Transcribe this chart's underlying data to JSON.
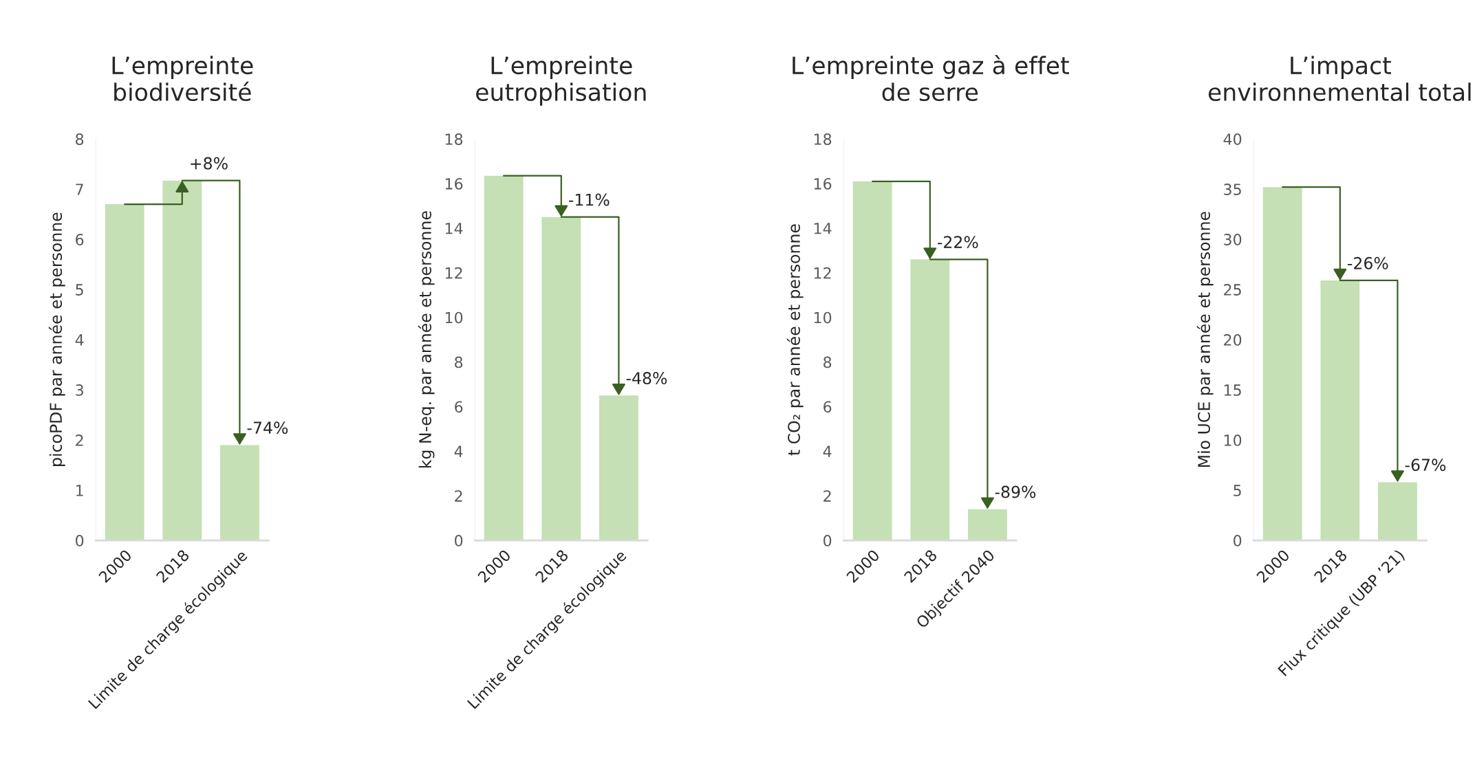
{
  "chart_data": [
    {
      "type": "bar",
      "title": "L’empreinte\nbiodiversité",
      "ylabel": "picoPDF par année et personne",
      "categories": [
        "2000",
        "2018",
        "Limite de charge écologique"
      ],
      "values": [
        6.7,
        7.17,
        1.9
      ],
      "color": "#c5e0b4",
      "ylim": [
        0,
        8
      ],
      "yticks": [
        0,
        1,
        2,
        3,
        4,
        5,
        6,
        7,
        8
      ],
      "grid": false,
      "annotations": [
        {
          "text": "+8%",
          "x": "2018",
          "y": 7.17
        },
        {
          "text": "-74%",
          "x": "Limite de charge écologique",
          "y": 1.9
        }
      ]
    },
    {
      "type": "bar",
      "title": "L’empreinte\neutrophisation",
      "ylabel": "kg N-eq. par année et personne",
      "categories": [
        "2000",
        "2018",
        "Limite de charge écologique"
      ],
      "values": [
        16.35,
        14.5,
        6.5
      ],
      "color": "#c5e0b4",
      "ylim": [
        0,
        18
      ],
      "yticks": [
        0,
        2,
        4,
        6,
        8,
        10,
        12,
        14,
        16,
        18
      ],
      "grid": false,
      "annotations": [
        {
          "text": "-11%",
          "x": "2018",
          "y": 14.5
        },
        {
          "text": "-48%",
          "x": "Limite de charge écologique",
          "y": 6.5
        }
      ]
    },
    {
      "type": "bar",
      "title": "L’empreinte gaz à effet\nde serre",
      "ylabel": "t CO₂ par année et personne",
      "categories": [
        "2000",
        "2018",
        "Objectif 2040"
      ],
      "values": [
        16.1,
        12.6,
        1.4
      ],
      "color": "#c5e0b4",
      "ylim": [
        0,
        18
      ],
      "yticks": [
        0,
        2,
        4,
        6,
        8,
        10,
        12,
        14,
        16,
        18
      ],
      "grid": false,
      "annotations": [
        {
          "text": "-22%",
          "x": "2018",
          "y": 12.6
        },
        {
          "text": "-89%",
          "x": "Objectif 2040",
          "y": 1.4
        }
      ]
    },
    {
      "type": "bar",
      "title": "L’impact\nenvironnemental total",
      "ylabel": "Mio UCE par année et personne",
      "categories": [
        "2000",
        "2018",
        "Flux critique (UBP ’21)"
      ],
      "values": [
        35.2,
        25.9,
        5.8
      ],
      "color": "#c5e0b4",
      "ylim": [
        0,
        40
      ],
      "yticks": [
        0,
        5,
        10,
        15,
        20,
        25,
        30,
        35,
        40
      ],
      "grid": false,
      "annotations": [
        {
          "text": "-26%",
          "x": "2018",
          "y": 25.9
        },
        {
          "text": "-67%",
          "x": "Flux critique (UBP ’21)",
          "y": 5.8
        }
      ]
    }
  ]
}
